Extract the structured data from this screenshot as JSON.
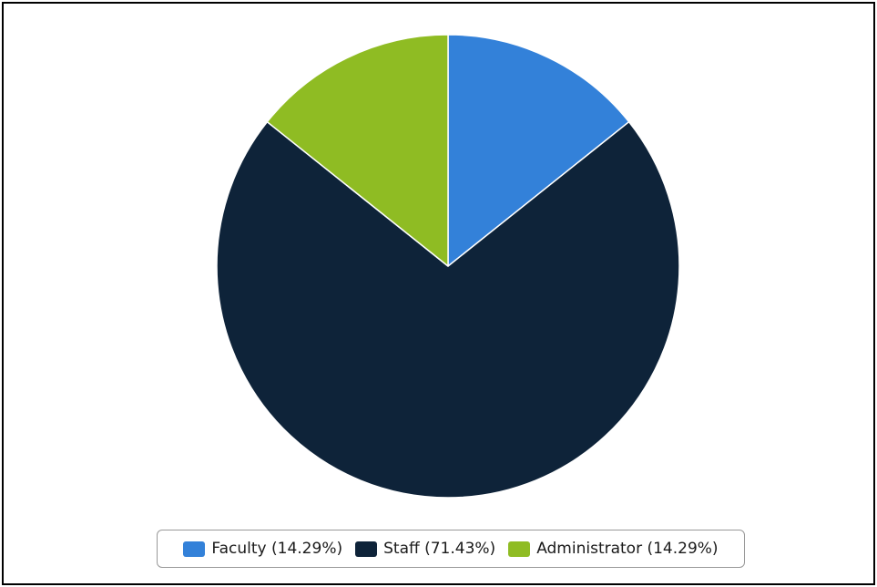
{
  "chart_data": {
    "type": "pie",
    "slices": [
      {
        "label": "Faculty",
        "value": 14.29,
        "display": "Faculty (14.29%)",
        "color": "#3381d9"
      },
      {
        "label": "Staff",
        "value": 71.43,
        "display": "Staff (71.43%)",
        "color": "#0e2339"
      },
      {
        "label": "Administrator",
        "value": 14.29,
        "display": "Administrator (14.29%)",
        "color": "#8fbc23"
      }
    ],
    "unit": "%",
    "legend_placement": "bottom-center",
    "slice_border_color": "#ffffff"
  }
}
